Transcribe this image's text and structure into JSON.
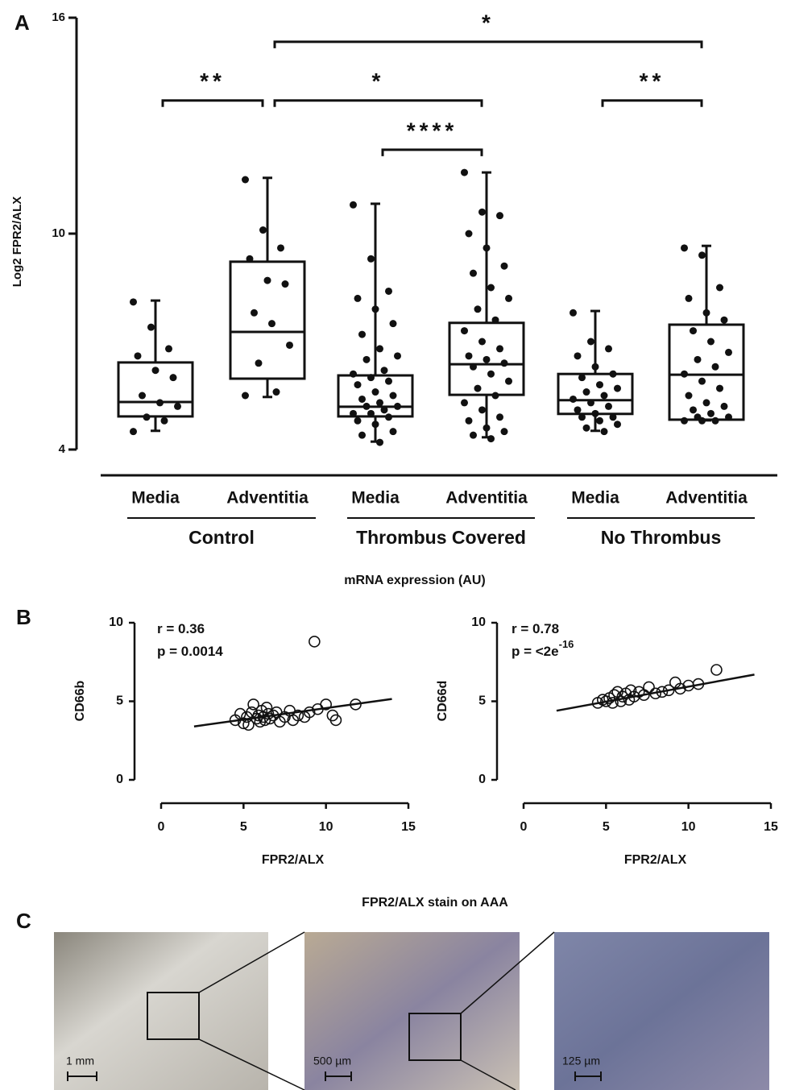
{
  "chart_data": [
    {
      "type": "box",
      "panel": "A",
      "ylabel": "Log2 FPR2/ALX",
      "xlabel": "mRNA expression (AU)",
      "ylim": [
        4,
        16
      ],
      "yticks": [
        4,
        10,
        16
      ],
      "categories": [
        "Media",
        "Adventitia",
        "Media",
        "Adventitia",
        "Media",
        "Adventitia"
      ],
      "groups": [
        "Control",
        "Thrombus Covered",
        "No Thrombus"
      ],
      "boxes": [
        {
          "min": 4.52,
          "q1": 4.92,
          "median": 5.32,
          "q3": 6.42,
          "max": 8.14,
          "points": [
            8.1,
            7.4,
            6.8,
            6.6,
            6.2,
            6.0,
            5.5,
            5.3,
            5.2,
            4.9,
            4.8,
            4.5
          ]
        },
        {
          "min": 5.46,
          "q1": 5.97,
          "median": 7.27,
          "q3": 9.22,
          "max": 11.55,
          "points": [
            11.5,
            10.1,
            9.6,
            9.3,
            8.7,
            8.6,
            7.8,
            7.5,
            6.9,
            6.4,
            5.6,
            5.5
          ]
        },
        {
          "min": 4.22,
          "q1": 4.92,
          "median": 5.19,
          "q3": 6.06,
          "max": 10.83,
          "points": [
            10.8,
            9.3,
            8.4,
            8.2,
            7.9,
            7.5,
            7.2,
            6.8,
            6.6,
            6.5,
            6.2,
            6.1,
            6.0,
            5.9,
            5.8,
            5.6,
            5.5,
            5.4,
            5.3,
            5.2,
            5.2,
            5.1,
            5.0,
            5.0,
            4.9,
            4.8,
            4.7,
            4.5,
            4.4,
            4.2
          ]
        },
        {
          "min": 4.34,
          "q1": 5.52,
          "median": 6.37,
          "q3": 7.52,
          "max": 11.7,
          "points": [
            11.7,
            10.6,
            10.5,
            10.0,
            9.6,
            9.1,
            8.9,
            8.5,
            8.2,
            7.9,
            7.6,
            7.3,
            7.0,
            6.8,
            6.6,
            6.5,
            6.4,
            6.3,
            6.1,
            5.9,
            5.7,
            5.5,
            5.3,
            5.1,
            4.9,
            4.8,
            4.6,
            4.5,
            4.4,
            4.3
          ]
        },
        {
          "min": 4.52,
          "q1": 4.99,
          "median": 5.37,
          "q3": 6.1,
          "max": 7.85,
          "points": [
            7.8,
            7.0,
            6.8,
            6.6,
            6.3,
            6.1,
            6.0,
            5.8,
            5.7,
            5.6,
            5.5,
            5.4,
            5.3,
            5.2,
            5.1,
            5.0,
            4.9,
            4.9,
            4.8,
            4.7,
            4.6,
            4.5
          ]
        },
        {
          "min": 4.81,
          "q1": 4.83,
          "median": 6.08,
          "q3": 7.47,
          "max": 9.66,
          "points": [
            9.6,
            9.4,
            8.5,
            8.2,
            7.8,
            7.6,
            7.3,
            7.0,
            6.7,
            6.5,
            6.3,
            6.1,
            5.9,
            5.7,
            5.5,
            5.3,
            5.2,
            5.1,
            5.0,
            4.9,
            4.9,
            4.8,
            4.8,
            4.8
          ]
        }
      ],
      "brackets": [
        {
          "label": "**",
          "from": 0,
          "to": 1,
          "y": 13.7
        },
        {
          "label": "*",
          "from": 1,
          "to": 3,
          "y": 13.7
        },
        {
          "label": "****",
          "from": 2,
          "to": 3,
          "y": 12.33
        },
        {
          "label": "**",
          "from": 4,
          "to": 5,
          "y": 13.7
        },
        {
          "label": "*",
          "from": 1,
          "to": 5,
          "y": 15.33
        }
      ]
    },
    {
      "type": "scatter",
      "panel": "B",
      "ylabel": "CD66b",
      "xlabel": "FPR2/ALX",
      "xlim": [
        0,
        15
      ],
      "xticks": [
        0,
        5,
        10,
        15
      ],
      "ylim": [
        0,
        10
      ],
      "yticks": [
        0,
        5,
        10
      ],
      "annotations": [
        {
          "text": "r = 0.36"
        },
        {
          "text": "p = 0.0014"
        }
      ],
      "x": [
        4.5,
        4.8,
        5.0,
        5.2,
        5.3,
        5.5,
        5.6,
        5.8,
        5.9,
        6.0,
        6.1,
        6.2,
        6.3,
        6.4,
        6.5,
        6.6,
        6.8,
        7.0,
        7.2,
        7.5,
        7.8,
        8.0,
        8.3,
        8.7,
        9.0,
        9.3,
        9.5,
        10.0,
        10.4,
        10.6,
        11.8
      ],
      "y": [
        3.8,
        4.2,
        3.6,
        4.0,
        3.5,
        4.3,
        4.8,
        3.9,
        4.1,
        3.7,
        4.4,
        4.0,
        3.8,
        4.6,
        4.2,
        3.9,
        4.1,
        4.3,
        3.7,
        4.0,
        4.4,
        3.8,
        4.1,
        4.0,
        4.3,
        8.8,
        4.5,
        4.8,
        4.1,
        3.8,
        4.8
      ],
      "fit": {
        "x": [
          2,
          14
        ],
        "y": [
          3.4,
          5.15
        ]
      }
    },
    {
      "type": "scatter",
      "ylabel": "CD66d",
      "xlabel": "FPR2/ALX",
      "xlim": [
        0,
        15
      ],
      "xticks": [
        0,
        5,
        10,
        15
      ],
      "ylim": [
        0,
        10
      ],
      "yticks": [
        0,
        5,
        10
      ],
      "annotations": [
        {
          "text": "r = 0.78"
        },
        {
          "text": "p = <2e",
          "sup": "-16"
        }
      ],
      "x": [
        4.5,
        4.8,
        5.0,
        5.2,
        5.4,
        5.5,
        5.7,
        5.9,
        6.0,
        6.2,
        6.4,
        6.5,
        6.7,
        7.0,
        7.3,
        7.6,
        8.0,
        8.4,
        8.8,
        9.2,
        9.5,
        10.0,
        10.6,
        11.7
      ],
      "y": [
        4.9,
        5.1,
        5.0,
        5.2,
        4.9,
        5.4,
        5.6,
        5.0,
        5.3,
        5.5,
        5.1,
        5.7,
        5.3,
        5.6,
        5.4,
        5.9,
        5.5,
        5.6,
        5.7,
        6.2,
        5.8,
        6.0,
        6.1,
        7.0
      ],
      "fit": {
        "x": [
          2,
          14
        ],
        "y": [
          4.4,
          6.7
        ]
      }
    }
  ],
  "panel_c": {
    "panel": "C",
    "title": "FPR2/ALX stain on AAA",
    "scale_bars": [
      "1 mm",
      "500 µm",
      "125 µm"
    ]
  }
}
